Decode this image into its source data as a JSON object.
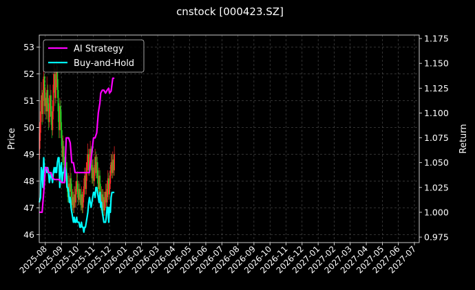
{
  "chart_data": {
    "type": "line",
    "title": "cnstock [000423.SZ]",
    "ylabel_left": "Price",
    "ylabel_right": "Return",
    "ylim_left": [
      45.7,
      53.45
    ],
    "ylim_right": [
      0.9695,
      1.1785
    ],
    "yticks_left": [
      "46",
      "47",
      "48",
      "49",
      "50",
      "51",
      "52",
      "53"
    ],
    "yticks_right": [
      "0.975",
      "1.000",
      "1.025",
      "1.050",
      "1.075",
      "1.100",
      "1.125",
      "1.150",
      "1.175"
    ],
    "x_ticks": [
      "2025-08",
      "2025-09",
      "2025-10",
      "2025-11",
      "2025-12",
      "2026-01",
      "2026-02",
      "2026-03",
      "2026-04",
      "2026-05",
      "2026-06",
      "2026-07",
      "2026-08",
      "2026-09",
      "2026-10",
      "2026-11",
      "2026-12",
      "2027-01",
      "2027-02",
      "2027-03",
      "2027-04",
      "2027-05",
      "2027-06",
      "2027-07"
    ],
    "x_tick_first_month_offset": 0.0,
    "x_range_months": [
      -0.38,
      23.3
    ],
    "grid": true,
    "legend_position": "top-left",
    "series": [
      {
        "name": "AI Strategy",
        "color": "#ff00ff",
        "axis": "right",
        "x": [
          -0.38,
          -0.2,
          -0.1,
          0.0,
          0.1,
          0.2,
          0.35,
          0.45,
          0.55,
          0.7,
          0.85,
          1.0,
          1.1,
          1.2,
          1.3,
          1.45,
          1.55,
          1.65,
          1.75,
          1.85,
          2.0,
          2.2,
          2.4,
          2.6,
          2.75,
          2.9,
          3.0,
          3.1,
          3.2,
          3.3,
          3.4,
          3.45,
          3.55,
          3.65,
          3.75,
          3.85,
          3.95,
          4.0,
          4.1,
          4.2,
          4.3
        ],
        "values": [
          1.0,
          1.0,
          1.02,
          1.045,
          1.045,
          1.04,
          1.04,
          1.035,
          1.033,
          1.033,
          1.033,
          1.03,
          1.03,
          1.03,
          1.075,
          1.075,
          1.07,
          1.05,
          1.05,
          1.04,
          1.04,
          1.04,
          1.04,
          1.04,
          1.04,
          1.06,
          1.075,
          1.075,
          1.08,
          1.1,
          1.11,
          1.12,
          1.123,
          1.123,
          1.12,
          1.123,
          1.125,
          1.12,
          1.122,
          1.135,
          1.135
        ]
      },
      {
        "name": "Buy-and-Hold",
        "color": "#00ffff",
        "axis": "right",
        "x": [
          -0.38,
          -0.3,
          -0.25,
          -0.2,
          -0.15,
          -0.1,
          -0.05,
          0.0,
          0.05,
          0.1,
          0.15,
          0.2,
          0.25,
          0.3,
          0.35,
          0.4,
          0.45,
          0.5,
          0.55,
          0.6,
          0.65,
          0.7,
          0.75,
          0.8,
          0.85,
          0.9,
          0.95,
          1.0,
          1.05,
          1.1,
          1.15,
          1.2,
          1.25,
          1.3,
          1.35,
          1.4,
          1.45,
          1.5,
          1.55,
          1.6,
          1.65,
          1.7,
          1.75,
          1.8,
          1.85,
          1.9,
          1.95,
          2.0,
          2.05,
          2.1,
          2.15,
          2.2,
          2.25,
          2.3,
          2.35,
          2.4,
          2.45,
          2.5,
          2.55,
          2.6,
          2.65,
          2.7,
          2.75,
          2.8,
          2.85,
          2.9,
          2.95,
          3.0,
          3.05,
          3.1,
          3.15,
          3.2,
          3.25,
          3.3,
          3.35,
          3.4,
          3.45,
          3.5,
          3.55,
          3.6,
          3.65,
          3.7,
          3.75,
          3.8,
          3.85,
          3.9,
          3.95,
          4.0,
          4.05,
          4.1,
          4.15,
          4.2,
          4.25,
          4.3
        ],
        "values": [
          1.01,
          1.015,
          1.045,
          1.04,
          1.025,
          1.055,
          1.04,
          1.045,
          1.045,
          1.04,
          1.045,
          1.04,
          1.03,
          1.035,
          1.04,
          1.035,
          1.03,
          1.04,
          1.045,
          1.04,
          1.045,
          1.04,
          1.05,
          1.055,
          1.055,
          1.025,
          1.045,
          1.05,
          1.03,
          1.04,
          1.04,
          1.045,
          1.045,
          1.04,
          1.025,
          1.025,
          1.02,
          1.01,
          1.015,
          1.005,
          1.0,
          0.995,
          0.99,
          0.995,
          0.99,
          0.99,
          0.995,
          0.99,
          0.99,
          0.99,
          0.985,
          0.985,
          0.99,
          0.985,
          0.985,
          0.98,
          0.985,
          0.985,
          0.99,
          0.995,
          1.0,
          1.01,
          1.015,
          1.01,
          1.005,
          1.01,
          1.015,
          1.02,
          1.02,
          1.015,
          1.025,
          1.025,
          1.02,
          1.015,
          1.01,
          1.02,
          1.005,
          1.01,
          1.0,
          0.995,
          0.99,
          0.99,
          0.99,
          0.995,
          1.005,
          1.005,
          0.99,
          1.005,
          1.0,
          1.015,
          1.02,
          1.02,
          1.02,
          1.02
        ]
      }
    ],
    "candles_price_axis": {
      "up_color": "#ff2a2a",
      "down_color": "#22cc22",
      "x": [
        -0.35,
        -0.3,
        -0.25,
        -0.2,
        -0.15,
        -0.1,
        -0.05,
        0.0,
        0.05,
        0.1,
        0.15,
        0.2,
        0.25,
        0.3,
        0.35,
        0.4,
        0.45,
        0.5,
        0.55,
        0.6,
        0.65,
        0.7,
        0.75,
        0.8,
        0.85,
        0.9,
        0.95,
        1.0,
        1.05,
        1.1,
        1.15,
        1.2,
        1.25,
        1.3,
        1.35,
        1.4,
        1.45,
        1.5,
        1.55,
        1.6,
        1.65,
        1.7,
        1.75,
        1.8,
        1.85,
        1.9,
        1.95,
        2.0,
        2.05,
        2.1,
        2.15,
        2.2,
        2.25,
        2.3,
        2.35,
        2.4,
        2.45,
        2.5,
        2.55,
        2.6,
        2.65,
        2.7,
        2.75,
        2.8,
        2.85,
        2.9,
        2.95,
        3.0,
        3.05,
        3.1,
        3.15,
        3.2,
        3.25,
        3.3,
        3.35,
        3.4,
        3.45,
        3.5,
        3.55,
        3.6,
        3.65,
        3.7,
        3.75,
        3.8,
        3.85,
        3.9,
        3.95,
        4.0,
        4.05,
        4.1,
        4.15,
        4.2,
        4.25,
        4.3
      ],
      "open": [
        49.2,
        49.8,
        50.6,
        51.2,
        50.5,
        51.3,
        51.9,
        50.8,
        51.1,
        50.6,
        51.4,
        50.9,
        50.2,
        50.7,
        51.2,
        50.4,
        49.9,
        50.6,
        51.6,
        52.0,
        51.1,
        51.8,
        52.1,
        51.4,
        50.6,
        49.9,
        50.8,
        50.2,
        49.6,
        48.9,
        49.3,
        48.6,
        48.2,
        48.7,
        48.3,
        47.8,
        47.4,
        47.9,
        47.6,
        48.1,
        47.6,
        47.1,
        47.4,
        47.0,
        47.5,
        47.2,
        47.7,
        48.0,
        47.6,
        47.3,
        47.7,
        47.4,
        47.1,
        47.5,
        47.0,
        47.4,
        47.8,
        48.2,
        47.7,
        48.3,
        48.7,
        49.0,
        48.4,
        48.9,
        49.2,
        48.6,
        48.1,
        48.5,
        48.0,
        48.4,
        48.9,
        48.3,
        48.7,
        48.1,
        47.7,
        48.2,
        47.6,
        47.1,
        47.5,
        47.0,
        47.4,
        46.9,
        47.3,
        47.6,
        47.2,
        47.7,
        48.1,
        47.5,
        47.9,
        48.4,
        48.7,
        48.3,
        48.8,
        48.4
      ],
      "close": [
        49.8,
        50.6,
        51.2,
        50.5,
        51.3,
        51.9,
        50.8,
        51.1,
        50.6,
        51.4,
        50.9,
        50.2,
        50.7,
        51.2,
        50.4,
        49.9,
        50.6,
        51.6,
        52.0,
        51.1,
        51.8,
        52.1,
        51.4,
        50.6,
        49.9,
        50.8,
        50.2,
        49.6,
        48.9,
        49.3,
        48.6,
        48.2,
        48.7,
        48.3,
        47.8,
        47.4,
        47.9,
        47.6,
        48.1,
        47.6,
        47.1,
        47.4,
        47.0,
        47.5,
        47.2,
        47.7,
        48.0,
        47.6,
        47.3,
        47.7,
        47.4,
        47.1,
        47.5,
        47.0,
        47.4,
        47.8,
        48.2,
        47.7,
        48.3,
        48.7,
        49.0,
        48.4,
        48.9,
        49.2,
        48.6,
        48.1,
        48.5,
        48.0,
        48.4,
        48.9,
        48.3,
        48.7,
        48.1,
        47.7,
        48.2,
        47.6,
        47.1,
        47.5,
        47.0,
        47.4,
        46.9,
        47.3,
        47.6,
        47.2,
        47.7,
        48.1,
        47.5,
        47.9,
        48.4,
        48.7,
        48.3,
        48.8,
        48.4,
        49.0
      ],
      "high": [
        50.2,
        51.0,
        51.7,
        51.4,
        51.8,
        52.3,
        52.0,
        51.5,
        51.3,
        51.9,
        51.6,
        51.1,
        51.2,
        51.6,
        51.4,
        50.8,
        51.0,
        52.0,
        52.4,
        52.2,
        52.2,
        52.5,
        52.3,
        51.8,
        50.9,
        51.1,
        51.0,
        50.6,
        49.9,
        49.7,
        49.5,
        48.9,
        49.1,
        48.9,
        48.7,
        48.2,
        48.3,
        48.2,
        48.5,
        48.3,
        47.9,
        47.7,
        47.6,
        47.8,
        47.8,
        48.0,
        48.3,
        48.3,
        47.9,
        48.0,
        47.9,
        47.7,
        47.8,
        47.6,
        47.7,
        48.1,
        48.5,
        48.5,
        48.7,
        49.0,
        49.4,
        49.2,
        49.2,
        49.5,
        49.3,
        48.9,
        48.8,
        48.8,
        48.6,
        49.2,
        49.1,
        49.0,
        48.9,
        48.4,
        48.5,
        48.4,
        47.9,
        47.8,
        47.7,
        47.7,
        47.6,
        47.6,
        47.9,
        47.9,
        48.0,
        48.4,
        48.3,
        48.2,
        48.6,
        49.0,
        49.0,
        49.1,
        49.0,
        49.3
      ],
      "low": [
        48.8,
        49.5,
        50.2,
        50.1,
        50.2,
        51.0,
        50.5,
        50.5,
        50.3,
        50.3,
        50.6,
        49.9,
        50.0,
        50.4,
        50.1,
        49.6,
        49.7,
        50.3,
        51.3,
        50.8,
        50.9,
        51.5,
        51.1,
        50.2,
        49.6,
        49.6,
        49.9,
        49.3,
        48.6,
        48.7,
        48.3,
        47.9,
        48.0,
        48.0,
        47.6,
        47.2,
        47.2,
        47.4,
        47.4,
        47.4,
        46.9,
        46.9,
        46.8,
        46.8,
        47.0,
        47.0,
        47.5,
        47.4,
        47.1,
        47.1,
        47.2,
        46.9,
        46.9,
        46.8,
        46.8,
        47.2,
        47.5,
        47.5,
        47.5,
        48.0,
        48.4,
        48.2,
        48.2,
        48.6,
        48.4,
        47.9,
        47.9,
        47.8,
        47.8,
        48.2,
        48.1,
        48.1,
        47.9,
        47.5,
        47.5,
        47.4,
        46.9,
        46.9,
        46.8,
        46.8,
        46.7,
        46.7,
        47.0,
        47.0,
        47.0,
        47.4,
        47.3,
        47.3,
        47.7,
        48.2,
        48.1,
        48.1,
        48.2,
        48.2
      ]
    }
  }
}
